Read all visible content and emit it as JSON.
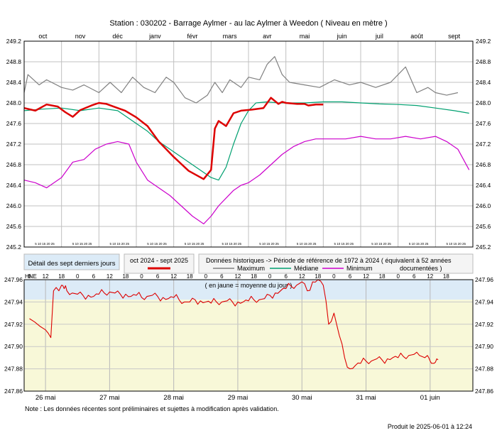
{
  "chart_data": [
    {
      "type": "line",
      "title": "Station : 030202      -    Barrage Aylmer - au lac Aylmer à Weedon   ( Niveau en mètre )",
      "months": [
        "oct",
        "nov",
        "déc",
        "janv",
        "févr",
        "mars",
        "avr",
        "mai",
        "juin",
        "juil",
        "août",
        "sept"
      ],
      "day_ticks_label": "5 10 15 20 25",
      "ylim": [
        245.2,
        249.2
      ],
      "yticks": [
        "249.2",
        "248.8",
        "248.4",
        "248.0",
        "247.6",
        "247.2",
        "246.8",
        "246.4",
        "246.0",
        "245.6",
        "245.2"
      ],
      "x_unit": "month index (0 = 1 oct 2024)",
      "series": [
        {
          "name": "oct 2024 - sept 2025",
          "color": "#dd0000",
          "x": [
            0,
            0.3,
            0.6,
            0.9,
            1.1,
            1.3,
            1.5,
            1.8,
            2.0,
            2.2,
            2.5,
            2.7,
            3.0,
            3.3,
            3.6,
            4.0,
            4.4,
            4.8,
            5.0,
            5.1,
            5.2,
            5.4,
            5.6,
            5.8,
            6.1,
            6.4,
            6.6,
            6.8,
            6.9,
            7.0,
            7.3,
            7.5,
            7.6,
            7.8,
            8.0
          ],
          "y": [
            247.9,
            247.85,
            247.97,
            247.93,
            247.82,
            247.73,
            247.86,
            247.95,
            248.0,
            247.98,
            247.9,
            247.85,
            247.72,
            247.55,
            247.25,
            246.95,
            246.68,
            246.52,
            246.7,
            247.5,
            247.65,
            247.55,
            247.8,
            247.85,
            247.87,
            247.9,
            248.1,
            247.98,
            248.02,
            248.0,
            247.98,
            247.98,
            247.95,
            247.97,
            247.97
          ]
        },
        {
          "name": "Maximum",
          "color": "#808080",
          "x": [
            0,
            0.1,
            0.4,
            0.6,
            1.0,
            1.3,
            1.6,
            2.0,
            2.3,
            2.6,
            2.9,
            3.2,
            3.5,
            3.8,
            4.0,
            4.3,
            4.6,
            4.9,
            5.1,
            5.3,
            5.5,
            5.8,
            6.0,
            6.3,
            6.5,
            6.7,
            6.9,
            7.1,
            7.5,
            7.9,
            8.3,
            8.7,
            9.0,
            9.4,
            9.8,
            10.2,
            10.5,
            10.8,
            11.0,
            11.3,
            11.6
          ],
          "y": [
            248.2,
            248.55,
            248.35,
            248.45,
            248.3,
            248.25,
            248.35,
            248.2,
            248.4,
            248.2,
            248.5,
            248.3,
            248.2,
            248.5,
            248.4,
            248.1,
            248.0,
            248.15,
            248.4,
            248.2,
            248.45,
            248.3,
            248.5,
            248.45,
            248.75,
            248.9,
            248.55,
            248.4,
            248.35,
            248.3,
            248.45,
            248.35,
            248.4,
            248.3,
            248.4,
            248.7,
            248.2,
            248.3,
            248.2,
            248.15,
            248.2
          ]
        },
        {
          "name": "Médiane",
          "color": "#00a070",
          "x": [
            0,
            0.5,
            1.0,
            1.5,
            2.0,
            2.5,
            3.0,
            3.3,
            3.6,
            3.9,
            4.2,
            4.5,
            4.8,
            5.0,
            5.2,
            5.4,
            5.6,
            5.8,
            6.0,
            6.2,
            6.5,
            6.8,
            7.0,
            7.5,
            8.0,
            8.5,
            9.0,
            9.5,
            10.0,
            10.5,
            11.0,
            11.5,
            11.9
          ],
          "y": [
            247.85,
            247.88,
            247.9,
            247.85,
            247.9,
            247.85,
            247.6,
            247.45,
            247.25,
            247.1,
            246.95,
            246.8,
            246.65,
            246.55,
            246.5,
            246.75,
            247.2,
            247.6,
            247.85,
            248.0,
            248.02,
            248.0,
            248.0,
            248.0,
            248.02,
            248.02,
            248.0,
            247.98,
            247.97,
            247.95,
            247.9,
            247.85,
            247.8
          ]
        },
        {
          "name": "Minimum",
          "color": "#cc00cc",
          "x": [
            0,
            0.3,
            0.6,
            1.0,
            1.3,
            1.6,
            1.9,
            2.2,
            2.5,
            2.8,
            3.0,
            3.3,
            3.6,
            3.9,
            4.2,
            4.5,
            4.8,
            5.0,
            5.2,
            5.4,
            5.6,
            5.8,
            6.0,
            6.3,
            6.6,
            6.9,
            7.2,
            7.5,
            7.8,
            8.2,
            8.6,
            9.0,
            9.4,
            9.8,
            10.2,
            10.6,
            11.0,
            11.3,
            11.6,
            11.9
          ],
          "y": [
            246.5,
            246.45,
            246.35,
            246.55,
            246.85,
            246.9,
            247.1,
            247.2,
            247.25,
            247.2,
            246.85,
            246.5,
            246.35,
            246.2,
            246.0,
            245.8,
            245.65,
            245.8,
            246.0,
            246.15,
            246.3,
            246.4,
            246.45,
            246.6,
            246.8,
            247.0,
            247.15,
            247.25,
            247.3,
            247.3,
            247.3,
            247.35,
            247.3,
            247.3,
            247.35,
            247.3,
            247.35,
            247.25,
            247.1,
            246.7
          ]
        }
      ]
    },
    {
      "type": "line",
      "title": "Détail des sept derniers jours",
      "annotation": "( en jaune = moyenne du jour )",
      "xlabel": "HNE",
      "hour_ticks": [
        "6",
        "12",
        "18",
        "0",
        "6",
        "12",
        "18",
        "0",
        "6",
        "12",
        "18",
        "0",
        "6",
        "12",
        "18",
        "0",
        "6",
        "12",
        "18",
        "0",
        "6",
        "12",
        "18",
        "0",
        "6",
        "12",
        "18"
      ],
      "day_labels": [
        "26 mai",
        "27 mai",
        "28 mai",
        "29 mai",
        "30 mai",
        "31 mai",
        "01 juin"
      ],
      "ylim": [
        247.86,
        247.96
      ],
      "yticks": [
        "247.96",
        "247.94",
        "247.92",
        "247.90",
        "247.88",
        "247.86"
      ],
      "x_unit": "hours since 26 mai 00:00",
      "daily_mean": 247.942,
      "series": [
        {
          "name": "oct 2024 - sept 2025",
          "color": "#dd0000",
          "x": [
            -6,
            -4,
            -2,
            0,
            1,
            2,
            3,
            4,
            5,
            6,
            7,
            8,
            10,
            12,
            14,
            16,
            18,
            20,
            22,
            24,
            26,
            28,
            30,
            32,
            34,
            36,
            38,
            40,
            42,
            44,
            46,
            48,
            50,
            52,
            54,
            56,
            58,
            60,
            62,
            64,
            66,
            68,
            70,
            72,
            74,
            76,
            78,
            80,
            82,
            84,
            86,
            88,
            90,
            92,
            94,
            96,
            98,
            100,
            102,
            104,
            106,
            108,
            110,
            112,
            114,
            116,
            118,
            120,
            122,
            124,
            126,
            128,
            130,
            132,
            134,
            136,
            138,
            140,
            142,
            143,
            143.5,
            144,
            144.5,
            145,
            145.5,
            146,
            146.5,
            147
          ],
          "y": [
            247.925,
            247.922,
            247.918,
            247.915,
            247.912,
            247.908,
            247.95,
            247.953,
            247.95,
            247.955,
            247.952,
            247.95,
            247.948,
            247.947,
            247.946,
            247.946,
            247.945,
            247.947,
            247.948,
            247.949,
            247.948,
            247.947,
            247.947,
            247.945,
            247.946,
            247.944,
            247.945,
            247.946,
            247.945,
            247.944,
            247.943,
            247.944,
            247.942,
            247.94,
            247.94,
            247.942,
            247.941,
            247.94,
            247.939,
            247.94,
            247.94,
            247.941,
            247.94,
            247.94,
            247.94,
            247.941,
            247.942,
            247.942,
            247.943,
            247.946,
            247.948,
            247.95,
            247.952,
            247.954,
            247.955,
            247.958,
            247.95,
            247.958,
            247.96,
            247.955,
            247.92,
            247.93,
            247.91,
            247.89,
            247.88,
            247.883,
            247.885,
            247.887,
            247.887,
            247.889,
            247.888,
            247.889,
            247.89,
            247.89,
            247.891,
            247.892,
            247.893,
            247.892,
            247.89,
            247.892,
            247.89,
            247.887,
            247.885,
            247.885,
            247.885,
            247.886,
            247.889,
            247.888
          ]
        }
      ]
    }
  ],
  "legend": {
    "current_label": "oct 2024 - sept 2025",
    "hist_title": "Données historiques -> Période de référence  de 1972 à 2024  ( équivalent à 52 années",
    "hist_title2": "documentées )",
    "max_label": "Maximum",
    "median_label": "Médiane",
    "min_label": "Minimum",
    "detail_label": "Détail des sept derniers jours"
  },
  "footer": {
    "note": "Note : Les données récentes sont préliminaires et sujettes à modification après validation.",
    "produced": "Produit le 2025-06-01 à 12:24"
  },
  "colors": {
    "current": "#dd0000",
    "maximum": "#808080",
    "median": "#00a070",
    "minimum": "#cc00cc",
    "detail_top_band": "#dcebf7",
    "detail_bottom_band": "#f8f8d8"
  }
}
